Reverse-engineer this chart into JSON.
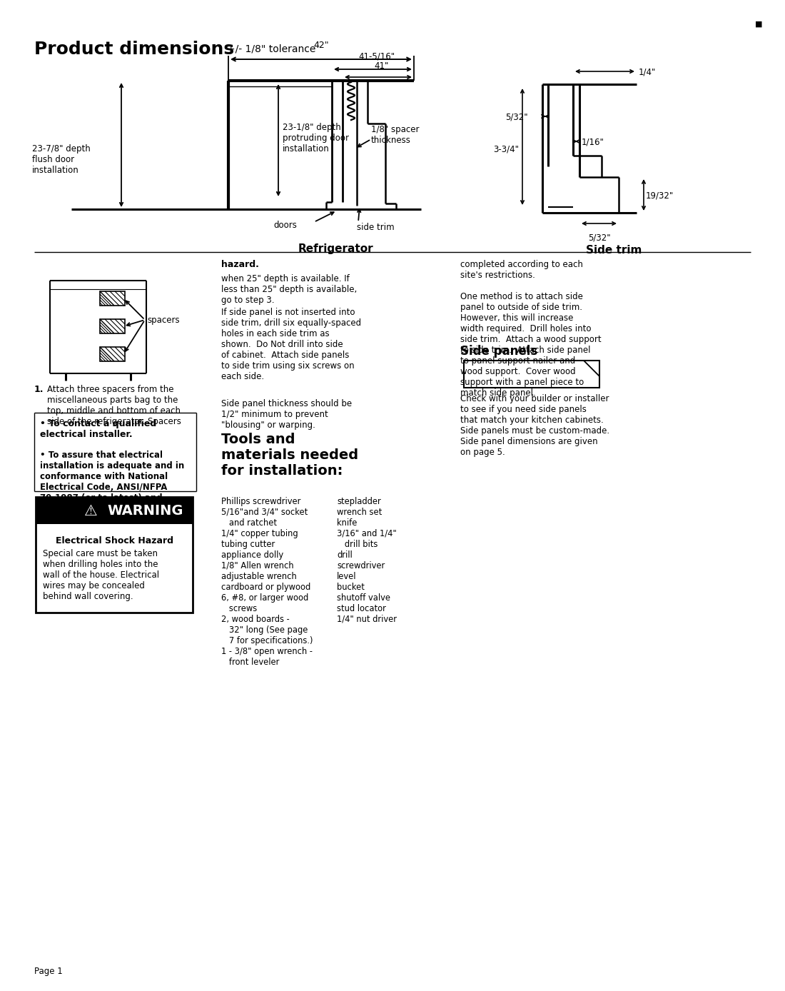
{
  "title": "Product dimensions",
  "subtitle": "+/- 1/8\" tolerance",
  "page_label": "Page 1",
  "background_color": "#ffffff",
  "text_color": "#000000",
  "refrig_label": "Refrigerator",
  "sidetrim_label": "Side trim",
  "dim_42": "42\"",
  "dim_41_5_16": "41-5/16\"",
  "dim_41": "41\"",
  "dim_23_1_8": "23-1/8\" depth\nprotruding door\ninstallation",
  "dim_23_7_8": "23-7/8\" depth\nflush door\ninstallation",
  "dim_1_8_spacer": "1/8\" spacer\nthickness",
  "dim_doors": "doors",
  "dim_sidetrim": "side trim",
  "st_1_4": "1/4\"",
  "st_5_32a": "5/32\"",
  "st_1_16": "1/16\"",
  "st_3_3_4": "3-3/4\"",
  "st_19_32": "19/32\"",
  "st_5_32b": "5/32\"",
  "tools_title": "Tools and\nmaterials needed\nfor installation:",
  "left_col": "Phillips screwdriver\n5/16\"and 3/4\" socket\n   and ratchet\n1/4\" copper tubing\ntubing cutter\nappliance dolly\n1/8\" Allen wrench\nadjustable wrench\ncardboard or plywood\n6, #8, or larger wood\n   screws\n2, wood boards -\n   32\" long (See page\n   7 for specifications.)\n1 - 3/8\" open wrench -\n   front leveler",
  "right_col": "stepladder\nwrench set\nknife\n3/16\" and 1/4\"\n   drill bits\ndrill\nscrewdriver\nlevel\nbucket\nshutoff valve\nstud locator\n1/4\" nut driver",
  "side_panels_title": "Side panels",
  "side_panels_text": "Check with your builder or installer\nto see if you need side panels\nthat match your kitchen cabinets.\nSide panels must be custom-made.\nSide panel dimensions are given\non page 5.",
  "step1_text": "Attach three spacers from the\nmiscellaneous parts bag to the\ntop, middle and bottom of each\nside of the refrigerator. Spacers",
  "spacers_label": "spacers",
  "bullet1_bold": "To contact a qualified\nelectrical installer.",
  "bullet2_bold": "To assure that electrical\ninstallation is adequate and in\nconformance with National\nElectrical Code, ANSI/NFPA\n70-1987 (or to latest) and\nlocal codes and ordinances.",
  "warning_title": "WARNING",
  "warning_subtitle": "Electrical Shock Hazard",
  "warning_text": "Special care must be taken\nwhen drilling holes into the\nwall of the house. Electrical\nwires may be concealed\nbehind wall covering.",
  "middle_para1": "when 25\" depth is available. If\nless than 25\" depth is available,\ngo to step 3.",
  "middle_para2": "If side panel is not inserted into\nside trim, drill six equally-spaced\nholes in each side trim as\nshown.  Do Not drill into side\nof cabinet.  Attach side panels\nto side trim using six screws on\neach side.",
  "middle_para2_bold": "Do Not drill into side\nof cabinet.",
  "middle_para3": "Side panel thickness should be\n1/2\" minimum to prevent\n\"blousing\" or warping.",
  "hazard_label": "hazard.",
  "right_para1": "completed according to each\nsite's restrictions.",
  "right_para2": "One method is to attach side\npanel to outside of side trim.\nHowever, this will increase\nwidth required.  Drill holes into\nside trim.  Attach a wood support\nto side trim.  Attach side panel\nto panel support nailer and\nwood support.  Cover wood\nsupport with a panel piece to\nmatch side panel."
}
